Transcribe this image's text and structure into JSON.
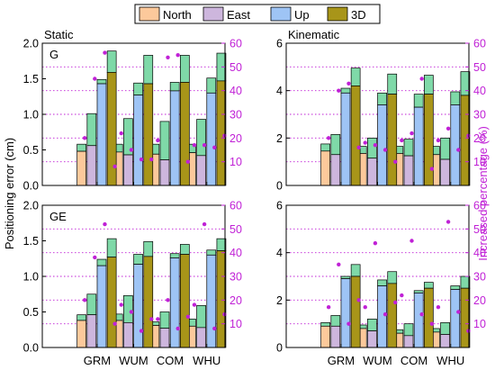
{
  "colors": {
    "north": "#fcc99b",
    "east": "#cdb6dd",
    "up": "#9ec4f5",
    "d3": "#a89519",
    "extension": "#7fd9a8",
    "percentage": "#c021d6",
    "gridline": "#c021d6"
  },
  "legend": [
    {
      "key": "north",
      "label": "North"
    },
    {
      "key": "east",
      "label": "East"
    },
    {
      "key": "up",
      "label": "Up"
    },
    {
      "key": "d3",
      "label": "3D"
    }
  ],
  "labels": {
    "ylabel_left": "Positioning error (cm)",
    "ylabel_right": "Increased percentage (%)"
  },
  "chart_data": [
    {
      "type": "bar",
      "panel": "top-left",
      "title": "Static",
      "panel_tag": "G",
      "categories": [
        "GRM",
        "WUM",
        "COM",
        "WHU"
      ],
      "show_categories": false,
      "ylim": [
        0,
        2
      ],
      "yticks": [
        "0.0",
        "0.5",
        "1.0",
        "1.5",
        "2.0"
      ],
      "y2lim": [
        0,
        60
      ],
      "y2ticks": [
        "10",
        "20",
        "30",
        "40",
        "50",
        "60"
      ],
      "series": [
        {
          "key": "north",
          "base": [
            0.48,
            0.47,
            0.44,
            0.46
          ],
          "extended": [
            0.58,
            0.58,
            0.58,
            0.58
          ]
        },
        {
          "key": "east",
          "base": [
            0.56,
            0.43,
            0.36,
            0.42
          ],
          "extended": [
            1.01,
            0.94,
            0.9,
            0.93
          ]
        },
        {
          "key": "up",
          "base": [
            1.43,
            1.27,
            1.33,
            1.3
          ],
          "extended": [
            1.49,
            1.44,
            1.45,
            1.51
          ]
        },
        {
          "key": "d3",
          "base": [
            1.59,
            1.43,
            1.45,
            1.47
          ],
          "extended": [
            1.89,
            1.83,
            1.83,
            1.86
          ]
        }
      ],
      "percentages": [
        [
          20,
          22,
          19,
          17
        ],
        [
          45,
          15,
          54,
          17
        ],
        [
          56,
          11,
          55,
          16
        ],
        [
          8,
          11,
          10,
          21
        ]
      ]
    },
    {
      "type": "bar",
      "panel": "top-right",
      "title": "Kinematic",
      "panel_tag": "",
      "categories": [
        "GRM",
        "WUM",
        "COM",
        "WHU"
      ],
      "show_categories": false,
      "ylim": [
        0,
        6
      ],
      "yticks": [
        "0",
        "2",
        "4",
        "6"
      ],
      "y2lim": [
        0,
        60
      ],
      "y2ticks": [
        "10",
        "20",
        "30",
        "40",
        "50",
        "60"
      ],
      "series": [
        {
          "key": "north",
          "base": [
            1.45,
            1.35,
            1.35,
            1.3
          ],
          "extended": [
            1.75,
            1.65,
            1.65,
            1.65
          ]
        },
        {
          "key": "east",
          "base": [
            1.3,
            1.15,
            1.25,
            1.1
          ],
          "extended": [
            2.15,
            2.0,
            1.95,
            2.0
          ]
        },
        {
          "key": "up",
          "base": [
            3.9,
            3.4,
            3.3,
            3.4
          ],
          "extended": [
            4.1,
            3.9,
            3.85,
            3.95
          ]
        },
        {
          "key": "d3",
          "base": [
            4.2,
            3.85,
            3.85,
            3.8
          ],
          "extended": [
            4.95,
            4.7,
            4.65,
            4.8
          ]
        }
      ],
      "percentages": [
        [
          20,
          18,
          19,
          19
        ],
        [
          40,
          17,
          22,
          24
        ],
        [
          43,
          15,
          45,
          15
        ],
        [
          16,
          10,
          7,
          21
        ]
      ]
    },
    {
      "type": "bar",
      "panel": "bottom-left",
      "title": "",
      "panel_tag": "GE",
      "categories": [
        "GRM",
        "WUM",
        "COM",
        "WHU"
      ],
      "show_categories": true,
      "ylim": [
        0,
        2
      ],
      "yticks": [
        "0.0",
        "0.5",
        "1.0",
        "1.5",
        "2.0"
      ],
      "y2lim": [
        0,
        60
      ],
      "y2ticks": [
        "10",
        "20",
        "30",
        "40",
        "50",
        "60"
      ],
      "series": [
        {
          "key": "north",
          "base": [
            0.38,
            0.38,
            0.31,
            0.3
          ],
          "extended": [
            0.46,
            0.47,
            0.36,
            0.4
          ]
        },
        {
          "key": "east",
          "base": [
            0.46,
            0.35,
            0.27,
            0.28
          ],
          "extended": [
            0.75,
            0.73,
            0.5,
            0.59
          ]
        },
        {
          "key": "up",
          "base": [
            1.15,
            1.17,
            1.26,
            1.3
          ],
          "extended": [
            1.24,
            1.31,
            1.32,
            1.37
          ]
        },
        {
          "key": "d3",
          "base": [
            1.27,
            1.28,
            1.31,
            1.36
          ],
          "extended": [
            1.53,
            1.49,
            1.45,
            1.53
          ]
        }
      ],
      "percentages": [
        [
          20,
          18,
          12,
          18
        ],
        [
          38,
          15,
          20,
          52
        ],
        [
          52,
          7,
          8,
          8
        ],
        [
          10,
          12,
          13,
          14
        ]
      ]
    },
    {
      "type": "bar",
      "panel": "bottom-right",
      "title": "",
      "panel_tag": "",
      "categories": [
        "GRM",
        "WUM",
        "COM",
        "WHU"
      ],
      "show_categories": true,
      "ylim": [
        0,
        6
      ],
      "yticks": [
        "0",
        "2",
        "4",
        "6"
      ],
      "y2lim": [
        0,
        60
      ],
      "y2ticks": [
        "10",
        "20",
        "30",
        "40",
        "50",
        "60"
      ],
      "series": [
        {
          "key": "north",
          "base": [
            0.9,
            0.8,
            0.6,
            0.65
          ],
          "extended": [
            1.05,
            0.95,
            0.75,
            0.8
          ]
        },
        {
          "key": "east",
          "base": [
            0.9,
            0.7,
            0.5,
            0.55
          ],
          "extended": [
            1.35,
            1.2,
            1.0,
            1.05
          ]
        },
        {
          "key": "up",
          "base": [
            2.9,
            2.6,
            2.3,
            2.45
          ],
          "extended": [
            3.0,
            2.85,
            2.4,
            2.6
          ]
        },
        {
          "key": "d3",
          "base": [
            3.0,
            2.7,
            2.5,
            2.5
          ],
          "extended": [
            3.5,
            3.2,
            2.75,
            3.0
          ]
        }
      ],
      "percentages": [
        [
          17,
          17,
          22,
          17
        ],
        [
          35,
          44,
          45,
          53
        ],
        [
          10,
          14,
          14,
          15
        ],
        [
          20,
          19,
          10,
          7
        ]
      ]
    }
  ]
}
